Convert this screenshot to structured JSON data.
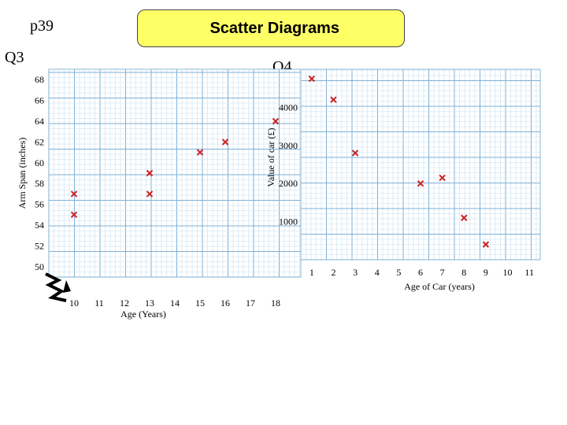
{
  "page": {
    "ref": "p39",
    "title": "Scatter Diagrams"
  },
  "chart_data": [
    {
      "id": "Q3",
      "label": "Q3",
      "type": "scatter",
      "xlabel": "Age (Years)",
      "ylabel": "Arm Span (inches)",
      "xlim": [
        9,
        19
      ],
      "ylim": [
        49,
        69
      ],
      "x_ticks": [
        10,
        11,
        12,
        13,
        14,
        15,
        16,
        17,
        18
      ],
      "y_ticks": [
        50,
        52,
        54,
        56,
        58,
        60,
        62,
        64,
        66,
        68
      ],
      "axis_break": true,
      "grid": true,
      "marker": "x",
      "marker_color": "#cc2222",
      "points": [
        {
          "x": 10,
          "y": 55
        },
        {
          "x": 10,
          "y": 57
        },
        {
          "x": 13,
          "y": 57
        },
        {
          "x": 13,
          "y": 59
        },
        {
          "x": 15,
          "y": 61
        },
        {
          "x": 16,
          "y": 62
        },
        {
          "x": 18,
          "y": 64
        }
      ]
    },
    {
      "id": "Q4",
      "label": "Q4",
      "type": "scatter",
      "xlabel": "Age of Car (years)",
      "ylabel": "Value of car (£)",
      "xlim": [
        0.5,
        11.5
      ],
      "ylim": [
        0,
        5000
      ],
      "x_ticks": [
        1,
        2,
        3,
        4,
        5,
        6,
        7,
        8,
        9,
        10,
        11
      ],
      "y_ticks": [
        1000,
        2000,
        3000,
        4000
      ],
      "grid": true,
      "marker": "x",
      "marker_color": "#cc2222",
      "points": [
        {
          "x": 1,
          "y": 4750
        },
        {
          "x": 2,
          "y": 4200
        },
        {
          "x": 3,
          "y": 2800
        },
        {
          "x": 6,
          "y": 2000
        },
        {
          "x": 7,
          "y": 2150
        },
        {
          "x": 8,
          "y": 1100
        },
        {
          "x": 9,
          "y": 400
        }
      ]
    }
  ]
}
